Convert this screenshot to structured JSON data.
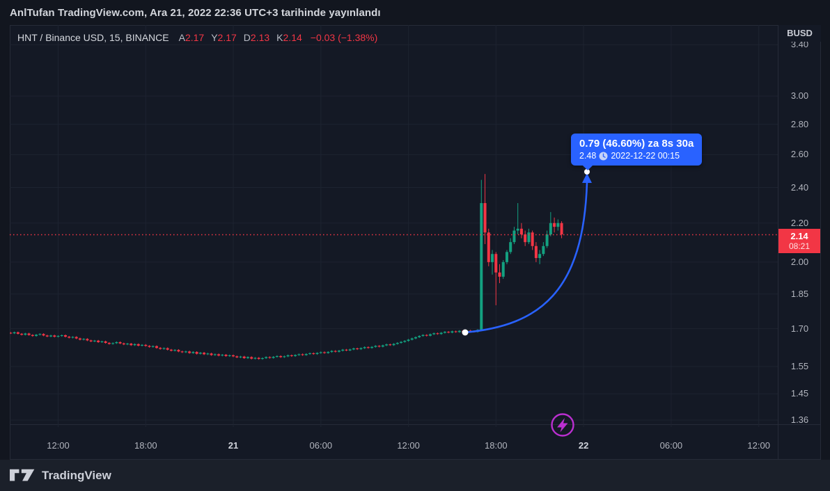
{
  "headline": {
    "text": "AnlTufan TradingView.com, Ara 21, 2022 22:36 UTC+3 tarihinde yayınlandı"
  },
  "legend": {
    "symbol_title": "HNT / Binance USD, 15, BINANCE",
    "values": [
      {
        "k": "A",
        "v": "2.17"
      },
      {
        "k": "Y",
        "v": "2.17"
      },
      {
        "k": "D",
        "v": "2.13"
      },
      {
        "k": "K",
        "v": "2.14"
      }
    ],
    "change": "−0.03 (−1.38%)"
  },
  "tooltip": {
    "line1": "0.79 (46.60%) za 8s 30a",
    "price": "2.48",
    "datetime": "2022-12-22  00:15"
  },
  "price_scale": {
    "currency": "BUSD",
    "labels": [
      "3.40",
      "3.00",
      "2.80",
      "2.60",
      "2.40",
      "2.20",
      "2.00",
      "1.85",
      "1.70",
      "1.55",
      "1.45",
      "1.36"
    ],
    "badge_price": "2.14",
    "badge_countdown": "08:21"
  },
  "time_scale": {
    "labels": [
      {
        "t": "12:00",
        "major": false
      },
      {
        "t": "18:00",
        "major": false
      },
      {
        "t": "21",
        "major": true
      },
      {
        "t": "06:00",
        "major": false
      },
      {
        "t": "12:00",
        "major": false
      },
      {
        "t": "18:00",
        "major": false
      },
      {
        "t": "22",
        "major": true
      },
      {
        "t": "06:00",
        "major": false
      },
      {
        "t": "12:00",
        "major": false
      }
    ]
  },
  "footer": {
    "brand": "TradingView"
  },
  "chart_data": {
    "type": "candlestick",
    "title": "HNT / Binance USD",
    "exchange": "BINANCE",
    "interval_minutes": 15,
    "quote_currency": "BUSD",
    "start_time": "2022-12-20 08:30 UTC+3",
    "y_axis": {
      "scale": "log",
      "labels": [
        3.4,
        3.0,
        2.8,
        2.6,
        2.4,
        2.2,
        2.0,
        1.85,
        1.7,
        1.55,
        1.45,
        1.36
      ]
    },
    "x_axis": {
      "tick_labels": [
        "12:00",
        "18:00",
        "21",
        "06:00",
        "12:00",
        "18:00",
        "22",
        "06:00",
        "12:00"
      ],
      "grid": true
    },
    "current_price": 2.14,
    "candle_countdown": "08:21",
    "session_values": {
      "open": 2.17,
      "high": 2.17,
      "low": 2.13,
      "close": 2.14,
      "change": -0.03,
      "change_pct": -1.38
    },
    "projection": {
      "from_price": 1.7,
      "from_time": "2022-12-21 16:00",
      "to_price": 2.48,
      "to_time": "2022-12-22 00:15",
      "change": 0.79,
      "change_pct": 46.6,
      "label": "0.79 (46.60%) za 8s 30a"
    },
    "colors": {
      "up": "#13a180",
      "down": "#f23645",
      "accent_blue": "#2962ff",
      "dotted_line": "#f23645",
      "purple": "#bb2fd1",
      "grid": "#1d2330"
    },
    "candles": [
      1.683,
      1.681,
      1.685,
      1.679,
      1.675,
      1.68,
      1.674,
      1.67,
      1.675,
      1.678,
      1.672,
      1.668,
      1.672,
      1.667,
      1.67,
      1.673,
      1.667,
      1.663,
      1.666,
      1.66,
      1.655,
      1.658,
      1.652,
      1.648,
      1.651,
      1.645,
      1.648,
      1.642,
      1.638,
      1.641,
      1.645,
      1.64,
      1.636,
      1.639,
      1.633,
      1.637,
      1.631,
      1.634,
      1.63,
      1.626,
      1.629,
      1.622,
      1.618,
      1.621,
      1.615,
      1.611,
      1.614,
      1.608,
      1.605,
      1.608,
      1.602,
      1.606,
      1.599,
      1.603,
      1.597,
      1.6,
      1.594,
      1.597,
      1.592,
      1.595,
      1.59,
      1.593,
      1.589,
      1.585,
      1.588,
      1.582,
      1.586,
      1.58,
      1.583,
      1.579,
      1.582,
      1.586,
      1.583,
      1.587,
      1.59,
      1.586,
      1.589,
      1.593,
      1.59,
      1.594,
      1.597,
      1.594,
      1.598,
      1.601,
      1.598,
      1.602,
      1.605,
      1.602,
      1.606,
      1.61,
      1.607,
      1.611,
      1.615,
      1.612,
      1.616,
      1.62,
      1.617,
      1.621,
      1.625,
      1.622,
      1.626,
      1.63,
      1.627,
      1.632,
      1.636,
      1.633,
      1.638,
      1.642,
      1.646,
      1.65,
      1.655,
      1.66,
      1.665,
      1.67,
      1.674,
      1.671,
      1.677,
      1.681,
      1.678,
      1.683,
      1.687,
      1.684,
      1.689,
      1.686,
      1.691,
      1.688,
      1.692,
      1.689,
      1.687,
      1.695,
      [
        1.695,
        2.445,
        1.69,
        2.31
      ],
      [
        2.31,
        2.48,
        2.09,
        2.15
      ],
      [
        2.15,
        2.17,
        1.98,
        2.0
      ],
      [
        2.0,
        2.06,
        1.94,
        2.04
      ],
      [
        2.04,
        2.05,
        1.8,
        1.95
      ],
      [
        1.95,
        1.99,
        1.9,
        1.93
      ],
      [
        1.93,
        2.01,
        1.92,
        2.0
      ],
      [
        2.0,
        2.06,
        1.99,
        2.05
      ],
      [
        2.05,
        2.12,
        2.04,
        2.1
      ],
      [
        2.1,
        2.18,
        2.09,
        2.16
      ],
      [
        2.16,
        2.31,
        2.14,
        2.17
      ],
      [
        2.17,
        2.2,
        2.12,
        2.14
      ],
      [
        2.14,
        2.16,
        2.08,
        2.1
      ],
      [
        2.1,
        2.17,
        2.09,
        2.15
      ],
      [
        2.15,
        2.16,
        2.06,
        2.08
      ],
      [
        2.08,
        2.1,
        2.0,
        2.02
      ],
      [
        2.02,
        2.06,
        1.99,
        2.04
      ],
      [
        2.04,
        2.1,
        2.03,
        2.08
      ],
      [
        2.08,
        2.16,
        2.07,
        2.14
      ],
      [
        2.14,
        2.26,
        2.13,
        2.2
      ],
      [
        2.2,
        2.23,
        2.15,
        2.18
      ],
      [
        2.18,
        2.22,
        2.16,
        2.2
      ],
      [
        2.2,
        2.21,
        2.12,
        2.14
      ]
    ]
  }
}
